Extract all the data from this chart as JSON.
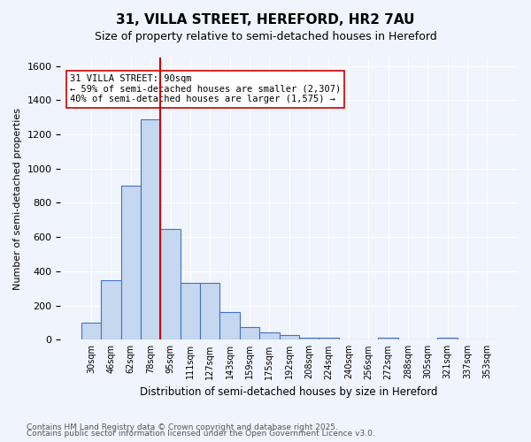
{
  "title_line1": "31, VILLA STREET, HEREFORD, HR2 7AU",
  "title_line2": "Size of property relative to semi-detached houses in Hereford",
  "xlabel": "Distribution of semi-detached houses by size in Hereford",
  "ylabel": "Number of semi-detached properties",
  "categories": [
    "30sqm",
    "46sqm",
    "62sqm",
    "78sqm",
    "95sqm",
    "111sqm",
    "127sqm",
    "143sqm",
    "159sqm",
    "175sqm",
    "192sqm",
    "208sqm",
    "224sqm",
    "240sqm",
    "256sqm",
    "272sqm",
    "288sqm",
    "305sqm",
    "321sqm",
    "337sqm",
    "353sqm"
  ],
  "values": [
    100,
    350,
    900,
    1290,
    650,
    330,
    330,
    160,
    75,
    45,
    25,
    10,
    10,
    0,
    0,
    10,
    0,
    0,
    10,
    0,
    0
  ],
  "bar_color": "#c5d8f0",
  "bar_edge_color": "#4472c4",
  "background_color": "#f0f4fc",
  "grid_color": "#ffffff",
  "annotation_text": "31 VILLA STREET: 90sqm\n← 59% of semi-detached houses are smaller (2,307)\n40% of semi-detached houses are larger (1,575) →",
  "ref_line_x": 90,
  "ref_line_color": "#cc0000",
  "annotation_box_color": "#ffffff",
  "annotation_box_edge": "#cc0000",
  "ylim": [
    0,
    1650
  ],
  "footnote_line1": "Contains HM Land Registry data © Crown copyright and database right 2025.",
  "footnote_line2": "Contains public sector information licensed under the Open Government Licence v3.0."
}
